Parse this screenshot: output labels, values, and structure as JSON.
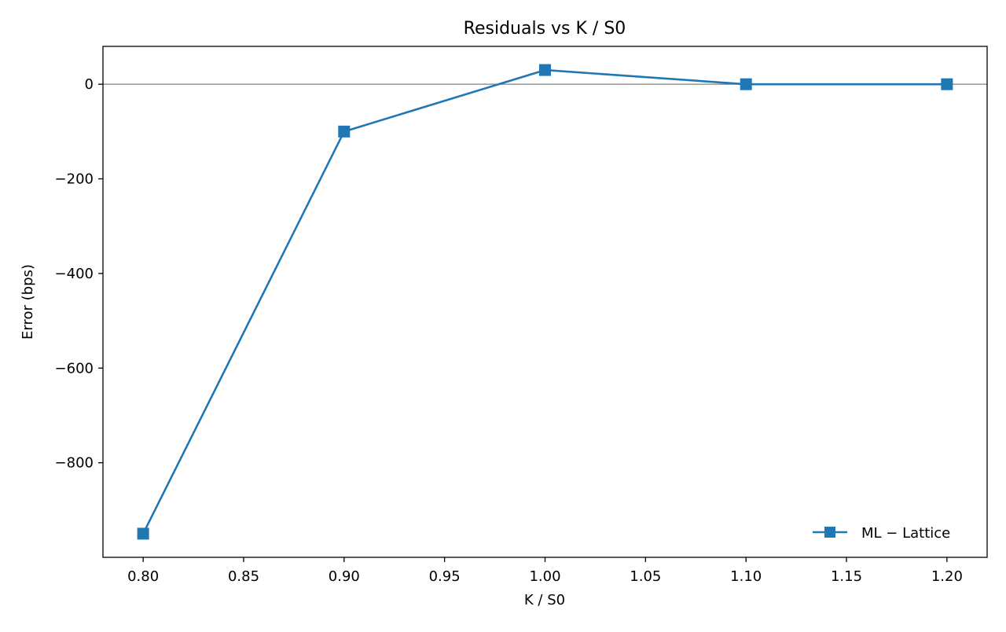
{
  "chart_data": {
    "type": "line",
    "title": "Residuals vs K / S0",
    "xlabel": "K / S0",
    "ylabel": "Error (bps)",
    "x": [
      0.8,
      0.9,
      1.0,
      1.1,
      1.2
    ],
    "series": [
      {
        "name": "ML − Lattice",
        "values": [
          -950,
          -100,
          30,
          0,
          0
        ],
        "color": "#1f77b4",
        "marker": "square"
      }
    ],
    "xlim": [
      0.78,
      1.22
    ],
    "ylim": [
      -1000,
      80
    ],
    "xticks": [
      0.8,
      0.85,
      0.9,
      0.95,
      1.0,
      1.05,
      1.1,
      1.15,
      1.2
    ],
    "xtick_labels": [
      "0.80",
      "0.85",
      "0.90",
      "0.95",
      "1.00",
      "1.05",
      "1.10",
      "1.15",
      "1.20"
    ],
    "yticks": [
      -800,
      -600,
      -400,
      -200,
      0
    ],
    "ytick_labels": [
      "−800",
      "−600",
      "−400",
      "−200",
      "0"
    ],
    "reference_line": {
      "y": 0,
      "color": "#808080"
    },
    "grid": false,
    "legend_position": "lower-right"
  }
}
